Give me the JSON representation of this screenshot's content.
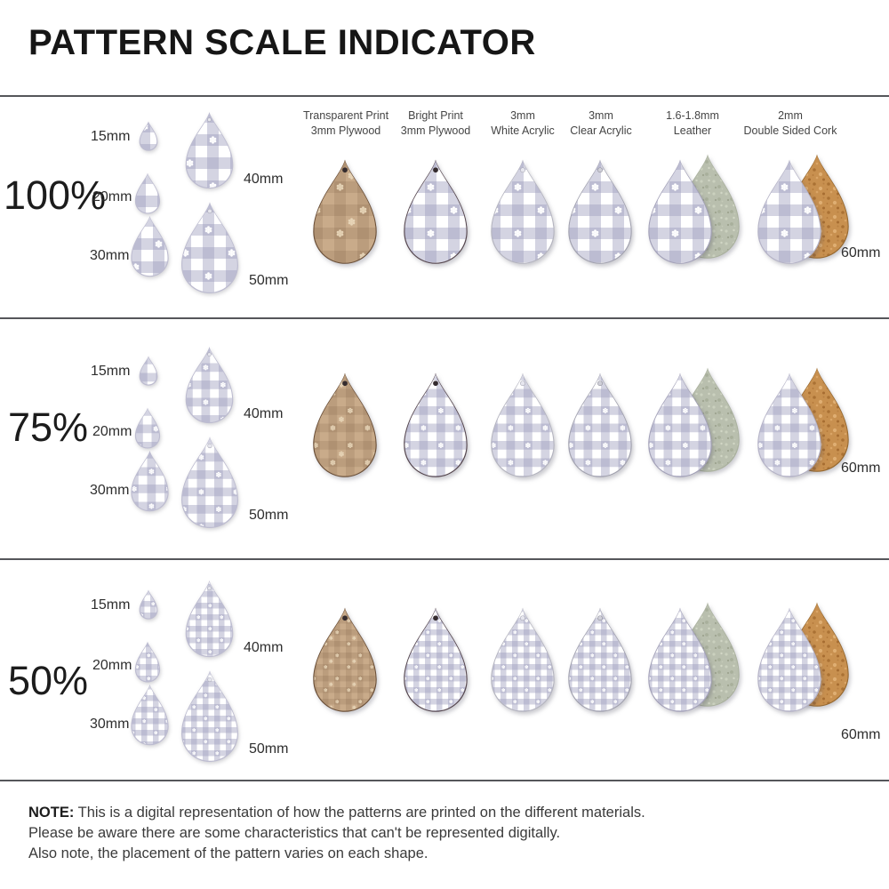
{
  "title": "PATTERN SCALE INDICATOR",
  "rows": [
    {
      "percent": "100%",
      "size_labels": [
        "15mm",
        "20mm",
        "30mm",
        "40mm",
        "50mm"
      ],
      "material_size_label": "60mm"
    },
    {
      "percent": "75%",
      "size_labels": [
        "15mm",
        "20mm",
        "30mm",
        "40mm",
        "50mm"
      ],
      "material_size_label": "60mm"
    },
    {
      "percent": "50%",
      "size_labels": [
        "15mm",
        "20mm",
        "30mm",
        "40mm",
        "50mm"
      ],
      "material_size_label": "60mm"
    }
  ],
  "materials": [
    {
      "line1": "Transparent Print",
      "line2": "3mm Plywood"
    },
    {
      "line1": "Bright Print",
      "line2": "3mm Plywood"
    },
    {
      "line1": "3mm",
      "line2": "White Acrylic"
    },
    {
      "line1": "3mm",
      "line2": "Clear Acrylic"
    },
    {
      "line1": "1.6-1.8mm",
      "line2": "Leather"
    },
    {
      "line1": "2mm",
      "line2": "Double Sided Cork"
    }
  ],
  "note": {
    "label": "NOTE:",
    "line1": "This is a digital representation of how the patterns are printed on the different materials.",
    "line2": "Please be aware there are some characteristics that can't be represented digitally.",
    "line3": "Also note, the placement of the pattern varies on each shape."
  },
  "pattern": {
    "description": "lavender gingham check with small white daisy flowers",
    "colors": {
      "gingham_band": "#d4d3e2",
      "gingham_overlap": "#bcbad2",
      "gingham_white": "#ffffff",
      "plywood_wood": "#c9ab8a",
      "leather_back_suede": "#b9bfae",
      "cork_back": "#c8904f",
      "separator_line": "#55565a",
      "text": "#3a3a3a"
    }
  }
}
